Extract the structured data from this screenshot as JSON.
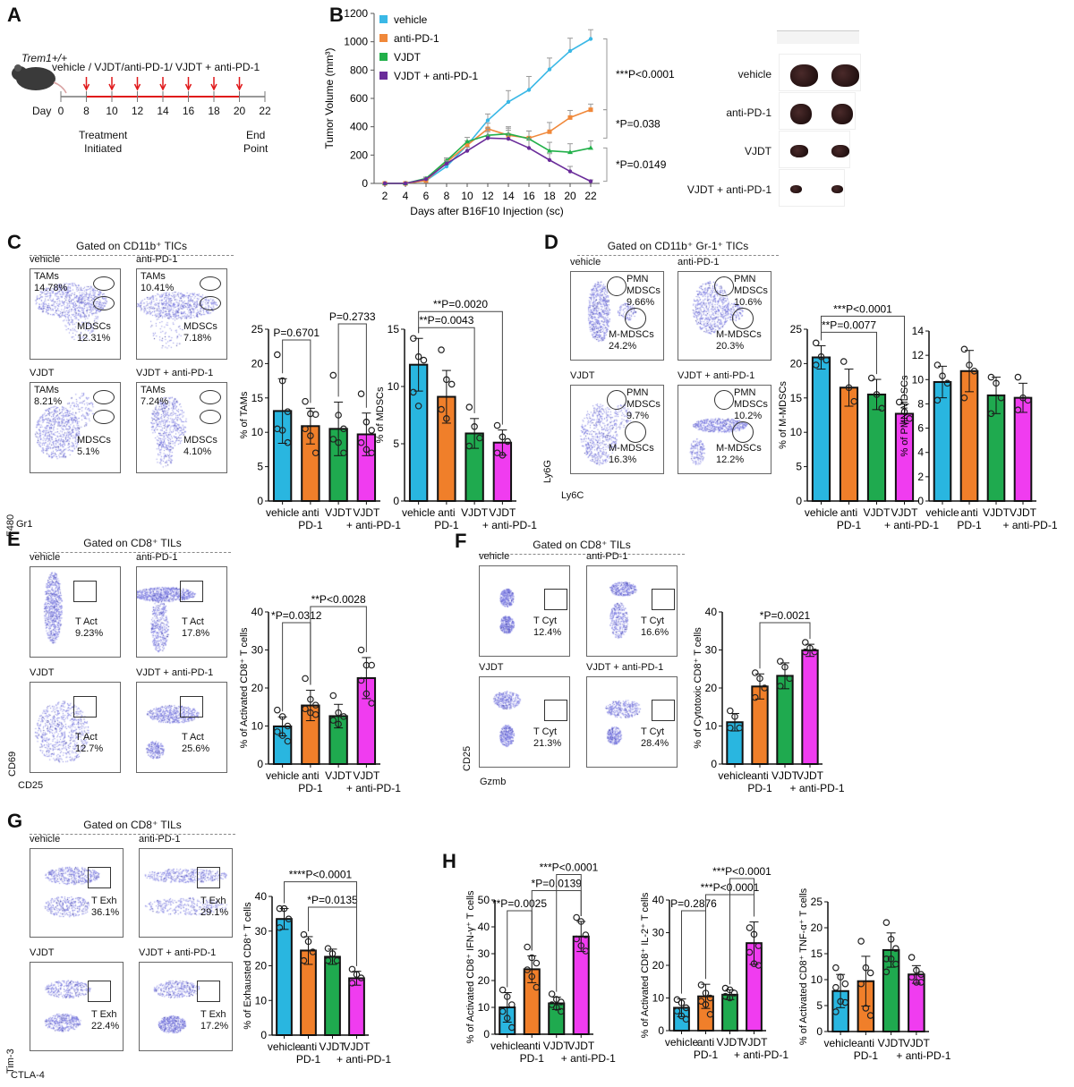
{
  "panels": {
    "A": {
      "letter": "A",
      "genotype": "Trem1+/+",
      "treatment_text": "vehicle / VJDT/anti-PD-1/ VJDT + anti-PD-1",
      "day_label": "Day",
      "days": [
        "0",
        "8",
        "10",
        "12",
        "14",
        "16",
        "18",
        "20",
        "22"
      ],
      "dose_days": [
        8,
        10,
        12,
        14,
        16,
        18,
        20
      ],
      "treatment_initiated": [
        "Treatment",
        "Initiated"
      ],
      "end_point": [
        "End",
        "Point"
      ],
      "arrow_color": "#e0191b"
    },
    "B": {
      "letter": "B",
      "photo_labels": [
        "vehicle",
        "anti-PD-1",
        "VJDT",
        "VJDT + anti-PD-1"
      ],
      "stats": [
        "***P<0.0001",
        "*P=0.038",
        "*P=0.0149"
      ]
    },
    "C": {
      "letter": "C",
      "gate": "Gated on CD11b⁺ TICs",
      "xaxis": "Gr1",
      "yaxis": "F480",
      "plots": [
        {
          "title": "vehicle",
          "top_label": "TAMs",
          "top_pct": "14.78%",
          "bottom_label": "MDSCs",
          "bottom_pct": "12.31%"
        },
        {
          "title": "anti-PD-1",
          "top_label": "TAMs",
          "top_pct": "10.41%",
          "bottom_label": "MDSCs",
          "bottom_pct": "7.18%"
        },
        {
          "title": "VJDT",
          "top_label": "TAMs",
          "top_pct": "8.21%",
          "bottom_label": "MDSCs",
          "bottom_pct": "5.1%"
        },
        {
          "title": "VJDT + anti-PD-1",
          "top_label": "TAMs",
          "top_pct": "7.24%",
          "bottom_label": "MDSCs",
          "bottom_pct": "4.10%"
        }
      ]
    },
    "D": {
      "letter": "D",
      "gate": "Gated on CD11b⁺ Gr-1⁺ TICs",
      "xaxis": "Ly6C",
      "yaxis": "Ly6G",
      "plots": [
        {
          "title": "vehicle",
          "top_label": "PMN MDSCs",
          "top_pct": "9.66%",
          "bottom_label": "M-MDSCs",
          "bottom_pct": "24.2%"
        },
        {
          "title": "anti-PD-1",
          "top_label": "PMN MDSCs",
          "top_pct": "10.6%",
          "bottom_label": "M-MDSCs",
          "bottom_pct": "20.3%"
        },
        {
          "title": "VJDT",
          "top_label": "PMN MDSCs",
          "top_pct": "9.7%",
          "bottom_label": "M-MDSCs",
          "bottom_pct": "16.3%"
        },
        {
          "title": "VJDT + anti-PD-1",
          "top_label": "PMN MDSCs",
          "top_pct": "10.2%",
          "bottom_label": "M-MDSCs",
          "bottom_pct": "12.2%"
        }
      ]
    },
    "E": {
      "letter": "E",
      "gate": "Gated on CD8⁺ TILs",
      "xaxis": "CD25",
      "yaxis": "CD69",
      "plots": [
        {
          "title": "vehicle",
          "label": "T Act",
          "pct": "9.23%"
        },
        {
          "title": "anti-PD-1",
          "label": "T Act",
          "pct": "17.8%"
        },
        {
          "title": "VJDT",
          "label": "T Act",
          "pct": "12.7%"
        },
        {
          "title": "VJDT + anti-PD-1",
          "label": "T Act",
          "pct": "25.6%"
        }
      ]
    },
    "F": {
      "letter": "F",
      "gate": "Gated on CD8⁺ TILs",
      "xaxis": "Gzmb",
      "yaxis": "CD25",
      "plots": [
        {
          "title": "vehicle",
          "label": "T Cyt",
          "pct": "12.4%"
        },
        {
          "title": "anti-PD-1",
          "label": "T Cyt",
          "pct": "16.6%"
        },
        {
          "title": "VJDT",
          "label": "T Cyt",
          "pct": "21.3%"
        },
        {
          "title": "VJDT + anti-PD-1",
          "label": "T Cyt",
          "pct": "28.4%"
        }
      ]
    },
    "G": {
      "letter": "G",
      "gate": "Gated on CD8⁺ TILs",
      "xaxis": "CTLA-4",
      "yaxis": "Tim-3",
      "plots": [
        {
          "title": "vehicle",
          "label": "T Exh",
          "pct": "36.1%"
        },
        {
          "title": "anti-PD-1",
          "label": "T Exh",
          "pct": "29.1%"
        },
        {
          "title": "VJDT",
          "label": "T Exh",
          "pct": "22.4%"
        },
        {
          "title": "VJDT + anti-PD-1",
          "label": "T Exh",
          "pct": "17.2%"
        }
      ]
    },
    "H": {
      "letter": "H"
    }
  },
  "group_colors": {
    "vehicle": "#29b6e0",
    "anti-PD-1": "#f07f2a",
    "VJDT": "#1faa4f",
    "VJDT + anti-PD-1": "#f03cf0"
  },
  "line_colors": {
    "vehicle": "#3ab8e6",
    "anti-PD-1": "#f0883a",
    "VJDT": "#22b04a",
    "VJDT + anti-PD-1": "#6a2c9a"
  },
  "bar_categories": [
    [
      "vehicle"
    ],
    [
      "anti",
      "PD-1"
    ],
    [
      "VJDT"
    ],
    [
      "VJDT",
      "+ anti-PD-1"
    ]
  ],
  "chart_data": [
    {
      "id": "tumor-volume",
      "type": "line",
      "xlabel": "Days after B16F10 Injection (sc)",
      "ylabel": "Tumor Volume (mm³)",
      "x": [
        2,
        4,
        6,
        8,
        10,
        12,
        14,
        16,
        18,
        20,
        22
      ],
      "xlim": [
        2,
        22
      ],
      "ylim": [
        0,
        1200
      ],
      "yticks": [
        0,
        200,
        400,
        600,
        800,
        1000,
        1200
      ],
      "legend_position": "top-left",
      "series": [
        {
          "name": "vehicle",
          "values": [
            0,
            0,
            20,
            120,
            270,
            445,
            575,
            660,
            805,
            935,
            1020
          ],
          "err": [
            0,
            0,
            10,
            20,
            30,
            45,
            80,
            95,
            80,
            90,
            65
          ]
        },
        {
          "name": "anti-PD-1",
          "values": [
            0,
            0,
            20,
            150,
            270,
            385,
            340,
            320,
            365,
            465,
            520
          ],
          "err": [
            0,
            0,
            10,
            20,
            30,
            40,
            50,
            50,
            65,
            50,
            40
          ]
        },
        {
          "name": "VJDT",
          "values": [
            0,
            0,
            35,
            160,
            295,
            340,
            350,
            315,
            230,
            220,
            250
          ],
          "err": [
            0,
            0,
            10,
            20,
            30,
            50,
            50,
            55,
            60,
            60,
            50
          ]
        },
        {
          "name": "VJDT + anti-PD-1",
          "values": [
            0,
            0,
            30,
            140,
            230,
            320,
            315,
            250,
            165,
            85,
            15
          ],
          "err": [
            0,
            0,
            10,
            20,
            25,
            45,
            60,
            65,
            45,
            35,
            10
          ]
        }
      ],
      "annotations": [
        "***P<0.0001",
        "*P=0.038",
        "*P=0.0149"
      ]
    },
    {
      "id": "tams",
      "type": "bar",
      "ylabel": "% of TAMs",
      "ylim": [
        0,
        25
      ],
      "yticks": [
        0,
        5,
        10,
        15,
        20,
        25
      ],
      "values": [
        13.1,
        10.9,
        10.5,
        9.7
      ],
      "err": [
        4.7,
        2.6,
        3.9,
        3.1
      ],
      "points": [
        [
          21.3,
          17.5,
          13.0,
          10.5,
          10.3,
          8.5
        ],
        [
          14.5,
          12.7,
          12.6,
          10.5,
          9.5,
          7.0
        ],
        [
          18.3,
          12.5,
          10.5,
          9.0,
          8.5,
          7.0
        ],
        [
          15.6,
          11.5,
          10.3,
          8.5,
          7.5,
          7.0
        ]
      ],
      "annotations": [
        {
          "text": "P=0.6701",
          "from": 0,
          "to": 1
        },
        {
          "text": "P=0.2733",
          "from": 2,
          "to": 3
        }
      ]
    },
    {
      "id": "mdscs",
      "type": "bar",
      "ylabel": "% of MDSCs",
      "ylim": [
        0,
        15
      ],
      "yticks": [
        0,
        5,
        10,
        15
      ],
      "values": [
        11.9,
        9.1,
        5.9,
        5.1
      ],
      "err": [
        2.3,
        2.3,
        1.3,
        1.1
      ],
      "points": [
        [
          14.2,
          12.6,
          12.3,
          9.5,
          8.3
        ],
        [
          13.2,
          10.6,
          10.2,
          8.0,
          7.2
        ],
        [
          8.2,
          6.5,
          5.5,
          4.8
        ],
        [
          6.6,
          5.6,
          5.2,
          4.2,
          4.0
        ]
      ],
      "annotations": [
        {
          "text": "**P=0.0043",
          "from": 0,
          "to": 2
        },
        {
          "text": "**P=0.0020",
          "from": 0,
          "to": 3
        }
      ]
    },
    {
      "id": "m-mdscs",
      "type": "bar",
      "ylabel": "% of M-MDSCs",
      "ylim": [
        0,
        25
      ],
      "yticks": [
        0,
        5,
        10,
        15,
        20,
        25
      ],
      "values": [
        20.9,
        16.5,
        15.5,
        12.7
      ],
      "err": [
        1.7,
        2.7,
        2.2,
        1.4
      ],
      "points": [
        [
          23.0,
          21.0,
          20.5,
          19.8
        ],
        [
          20.3,
          16.5,
          14.5
        ],
        [
          17.9,
          15.5,
          13.5
        ],
        [
          14.4,
          13.0,
          12.0
        ]
      ],
      "annotations": [
        {
          "text": "**P=0.0077",
          "from": 0,
          "to": 2
        },
        {
          "text": "***P<0.0001",
          "from": 0,
          "to": 3
        }
      ]
    },
    {
      "id": "pmn-mdscs",
      "type": "bar",
      "ylabel": "% of PMN-MDSCs",
      "ylim": [
        0,
        14
      ],
      "yticks": [
        0,
        2,
        4,
        6,
        8,
        10,
        12,
        14
      ],
      "ybaseline": 0,
      "values": [
        9.8,
        10.7,
        8.7,
        8.5
      ],
      "err": [
        1.3,
        1.7,
        1.5,
        1.2
      ],
      "points": [
        [
          11.2,
          10.3,
          9.7,
          8.3
        ],
        [
          12.5,
          11.2,
          10.7,
          8.5
        ],
        [
          10.2,
          9.7,
          8.5,
          7.2
        ],
        [
          10.2,
          8.5,
          8.3,
          7.5
        ]
      ],
      "annotations": []
    },
    {
      "id": "activated-cd8",
      "type": "bar",
      "ylabel": "% of Activated CD8⁺ T cells",
      "ylim": [
        0,
        40
      ],
      "yticks": [
        0,
        10,
        20,
        30,
        40
      ],
      "values": [
        9.9,
        15.4,
        12.6,
        22.6
      ],
      "err": [
        2.5,
        4.0,
        3.1,
        5.4
      ],
      "points": [
        [
          14.2,
          12.5,
          10.0,
          8.5,
          7.5,
          6.0
        ],
        [
          22.5,
          17.0,
          15.5,
          14.5,
          13.5,
          13.0
        ],
        [
          18.0,
          13.5,
          12.5,
          11.5,
          10.5
        ],
        [
          30.0,
          26.0,
          26.0,
          22.0,
          18.5,
          16.0
        ]
      ],
      "annotations": [
        {
          "text": "*P=0.0312",
          "from": 0,
          "to": 1
        },
        {
          "text": "**P<0.0028",
          "from": 1,
          "to": 3
        }
      ]
    },
    {
      "id": "cytotoxic-cd8",
      "type": "bar",
      "ylabel": "% of Cytotoxic CD8⁺ T cells",
      "ylim": [
        0,
        40
      ],
      "yticks": [
        0,
        10,
        20,
        30,
        40
      ],
      "values": [
        11.0,
        20.4,
        23.2,
        29.9
      ],
      "err": [
        2.3,
        3.3,
        3.4,
        1.6
      ],
      "points": [
        [
          14.0,
          12.5,
          9.5,
          9.5
        ],
        [
          24.0,
          22.5,
          20.0,
          17.5
        ],
        [
          27.0,
          25.5,
          22.5,
          20.5
        ],
        [
          32.0,
          30.5,
          29.5,
          29.5
        ]
      ],
      "annotations": [
        {
          "text": "*P=0.0021",
          "from": 1,
          "to": 3
        }
      ]
    },
    {
      "id": "exhausted-cd8",
      "type": "bar",
      "ylabel": "% of Exhausted CD8⁺ T cells",
      "ylim": [
        0,
        40
      ],
      "yticks": [
        0,
        10,
        20,
        30,
        40
      ],
      "values": [
        33.5,
        24.4,
        22.6,
        16.4
      ],
      "err": [
        3.0,
        4.0,
        2.2,
        2.0
      ],
      "points": [
        [
          36.5,
          36.5,
          33.5,
          31.0
        ],
        [
          29.0,
          27.0,
          24.0,
          21.5
        ],
        [
          25.0,
          23.5,
          21.5,
          21.5
        ],
        [
          19.0,
          17.5,
          16.5,
          15.0
        ]
      ],
      "annotations": [
        {
          "text": "*P=0.0135",
          "from": 1,
          "to": 3
        },
        {
          "text": "****P<0.0001",
          "from": 0,
          "to": 3
        }
      ]
    },
    {
      "id": "ifng",
      "type": "bar",
      "ylabel": "% of Activated CD8⁺ IFN-γ⁺ T cells",
      "ylim": [
        0,
        50
      ],
      "yticks": [
        0,
        10,
        20,
        30,
        40,
        50
      ],
      "values": [
        10.0,
        24.2,
        11.5,
        36.4
      ],
      "err": [
        5.5,
        5.0,
        2.3,
        5.6
      ],
      "points": [
        [
          16.5,
          14.0,
          11.0,
          8.5,
          6.0,
          2.5
        ],
        [
          32.5,
          28.5,
          26.5,
          24.0,
          21.5,
          17.5
        ],
        [
          15.0,
          13.0,
          12.0,
          11.0,
          10.0,
          8.5
        ],
        [
          43.5,
          42.0,
          37.0,
          35.5,
          33.0,
          31.0
        ]
      ],
      "annotations": [
        {
          "text": "**P=0.0025",
          "from": 0,
          "to": 1
        },
        {
          "text": "*P=0.0139",
          "from": 1,
          "to": 3
        },
        {
          "text": "***P<0.0001",
          "from": 2,
          "to": 3
        }
      ]
    },
    {
      "id": "il2",
      "type": "bar",
      "ylabel": "% of Activated CD8⁺ IL-2⁺ T cells",
      "ylim": [
        0,
        40
      ],
      "yticks": [
        0,
        10,
        20,
        30,
        40
      ],
      "values": [
        7.0,
        10.5,
        11.0,
        26.8
      ],
      "err": [
        2.7,
        3.7,
        1.5,
        6.5
      ],
      "points": [
        [
          9.5,
          8.5,
          7.0,
          6.0,
          4.5,
          3.5
        ],
        [
          14.0,
          11.5,
          10.0,
          9.0,
          8.0,
          5.0
        ],
        [
          13.0,
          12.5,
          11.5,
          10.5,
          10.0
        ],
        [
          31.5,
          29.5,
          26.0,
          24.0,
          20.5,
          20.0
        ]
      ],
      "annotations": [
        {
          "text": "P=0.2876",
          "from": 0,
          "to": 1
        },
        {
          "text": "***P<0.0001",
          "from": 1,
          "to": 3
        },
        {
          "text": "***P<0.0001",
          "from": 2,
          "to": 3
        }
      ]
    },
    {
      "id": "tnfa",
      "type": "bar",
      "ylabel": "% of Activated CD8⁺ TNF-α⁺ T cells",
      "ylim": [
        0,
        25
      ],
      "yticks": [
        0,
        5,
        10,
        15,
        20,
        25
      ],
      "values": [
        7.8,
        9.7,
        15.7,
        11.0
      ],
      "err": [
        3.2,
        4.8,
        3.3,
        1.7
      ],
      "points": [
        [
          12.3,
          10.5,
          9.2,
          8.5,
          5.8,
          5.6,
          3.8
        ],
        [
          17.4,
          12.3,
          11.3,
          9.2,
          4.5,
          3.1
        ],
        [
          21.0,
          17.8,
          16.0,
          14.0,
          14.0,
          13.0,
          11.5
        ],
        [
          14.3,
          11.8,
          11.0,
          10.5,
          9.5,
          9.5
        ]
      ],
      "annotations": []
    }
  ],
  "bar_layout_categories_note": "vehicle | anti PD-1 | VJDT | VJDT + anti-PD-1"
}
